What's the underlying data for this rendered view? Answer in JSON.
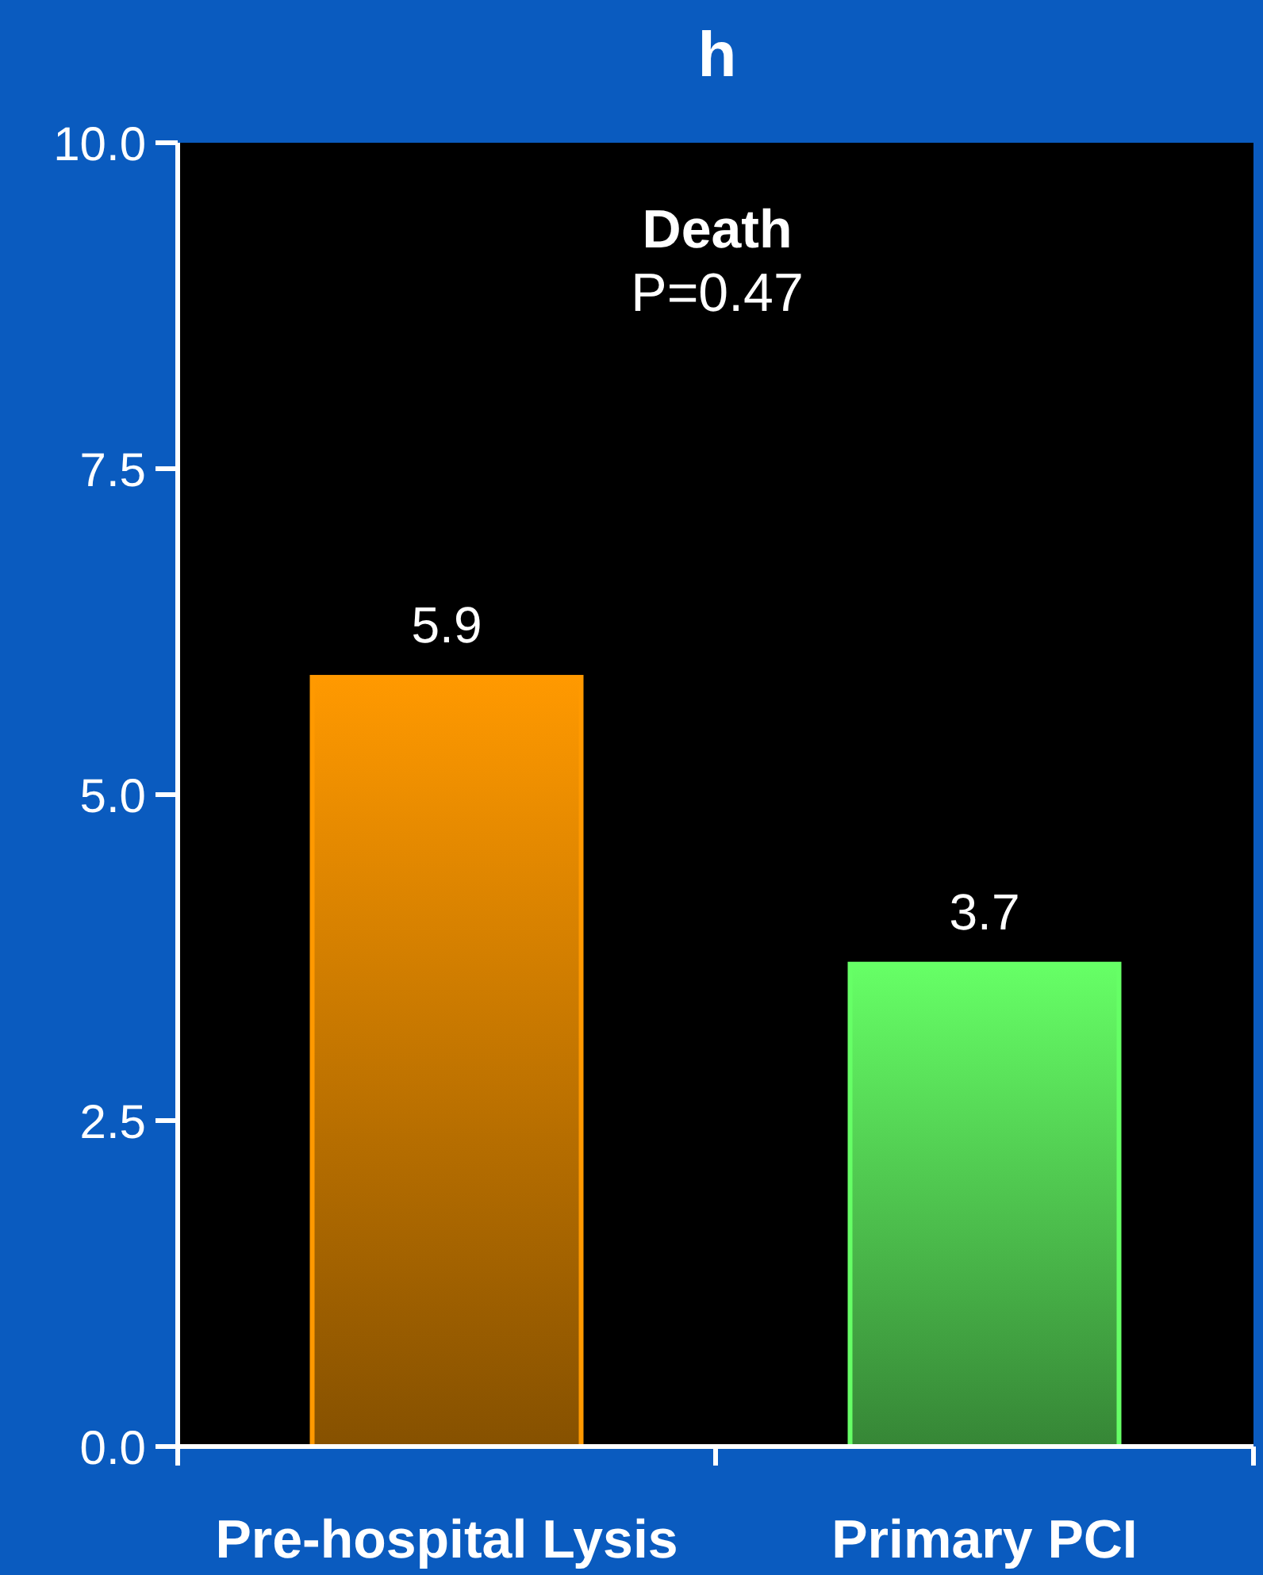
{
  "chart_data": {
    "type": "bar",
    "title": "h",
    "categories": [
      "Pre-hospital Lysis",
      "Primary PCI"
    ],
    "values": [
      5.9,
      3.7
    ],
    "colors": [
      "#ff9900",
      "#66ff66"
    ],
    "ylim": [
      0,
      10
    ],
    "yticks": [
      {
        "value": 0,
        "label": "0.0"
      },
      {
        "value": 2.5,
        "label": "2.5"
      },
      {
        "value": 5,
        "label": "5.0"
      },
      {
        "value": 7.5,
        "label": "7.5"
      },
      {
        "value": 10,
        "label": "10.0"
      }
    ],
    "data_labels": true,
    "annotations": [
      "Death",
      "P=0.47"
    ]
  }
}
